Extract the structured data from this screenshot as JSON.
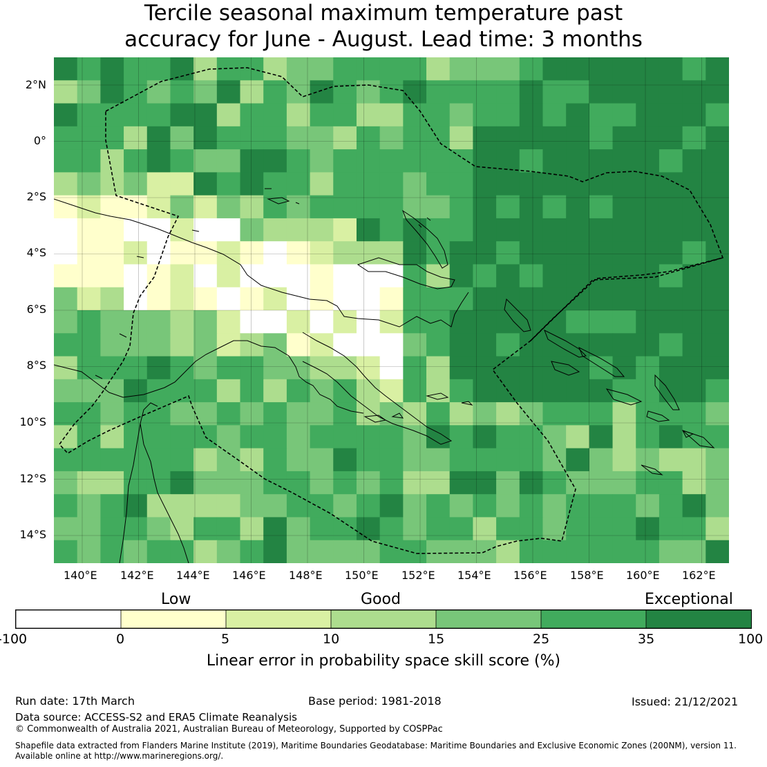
{
  "title": {
    "line1": "Tercile seasonal maximum temperature past",
    "line2": "accuracy for June - August. Lead time: 3 months"
  },
  "map": {
    "lat_labels": [
      "2°N",
      "0°",
      "2°S",
      "4°S",
      "6°S",
      "8°S",
      "10°S",
      "12°S",
      "14°S"
    ],
    "lon_labels": [
      "140°E",
      "142°E",
      "144°E",
      "146°E",
      "148°E",
      "150°E",
      "152°E",
      "154°E",
      "156°E",
      "158°E",
      "160°E",
      "162°E"
    ],
    "colors": {
      "white": "#ffffff",
      "cream": "#ffffcc",
      "pale": "#d9f0a3",
      "light": "#addd8e",
      "mid": "#78c679",
      "green": "#41ab5d",
      "dark": "#238443",
      "land_outline": "#000000",
      "eez_outline": "#000000"
    }
  },
  "legend": {
    "categories": [
      "Low",
      "Good",
      "Exceptional"
    ],
    "ticks": [
      "-100",
      "0",
      "5",
      "10",
      "15",
      "25",
      "35",
      "100"
    ],
    "colors": [
      "#ffffff",
      "#ffffcc",
      "#d9f0a3",
      "#addd8e",
      "#78c679",
      "#41ab5d",
      "#238443"
    ],
    "label": "Linear error in probability space skill score (%)"
  },
  "footer": {
    "run_date": "Run date: 17th March",
    "base_period": "Base period: 1981-2018",
    "issued": "Issued: 21/12/2021",
    "data_source": "Data source: ACCESS-S2 and ERA5 Climate Reanalysis",
    "copyright": "© Commonwealth of Australia 2021, Australian Bureau of Meteorology, Supported by COSPPac",
    "shapefile_line1": "Shapefile data extracted from Flanders Marine Institute (2019), Maritime Boundaries Geodatabase: Maritime Boundaries and Exclusive Economic Zones (200NM), version 11.",
    "shapefile_line2": "Available online at http://www.marineregions.org/."
  }
}
